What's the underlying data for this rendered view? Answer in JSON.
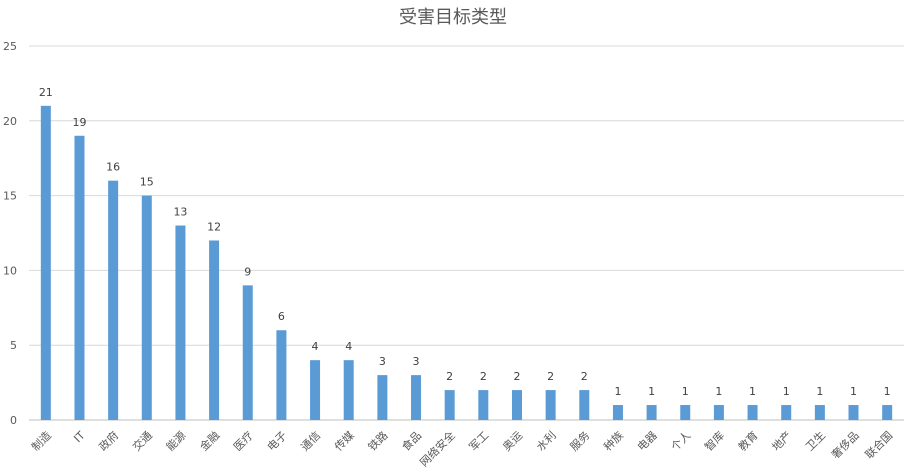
{
  "chart_data": {
    "type": "bar",
    "title": "受害目标类型",
    "categories": [
      "制造",
      "IT",
      "政府",
      "交通",
      "能源",
      "金融",
      "医疗",
      "电子",
      "通信",
      "传媒",
      "铁路",
      "食品",
      "网络安全",
      "军工",
      "奥运",
      "水利",
      "服务",
      "种族",
      "电器",
      "个人",
      "智库",
      "教育",
      "地产",
      "卫生",
      "奢侈品",
      "联合国"
    ],
    "values": [
      21,
      19,
      16,
      15,
      13,
      12,
      9,
      6,
      4,
      4,
      3,
      3,
      2,
      2,
      2,
      2,
      2,
      1,
      1,
      1,
      1,
      1,
      1,
      1,
      1,
      1
    ],
    "ylim": [
      0,
      25
    ],
    "yticks": [
      0,
      5,
      10,
      15,
      20,
      25
    ],
    "grid": true,
    "bar_color": "#5b9bd5",
    "data_labels": true
  }
}
